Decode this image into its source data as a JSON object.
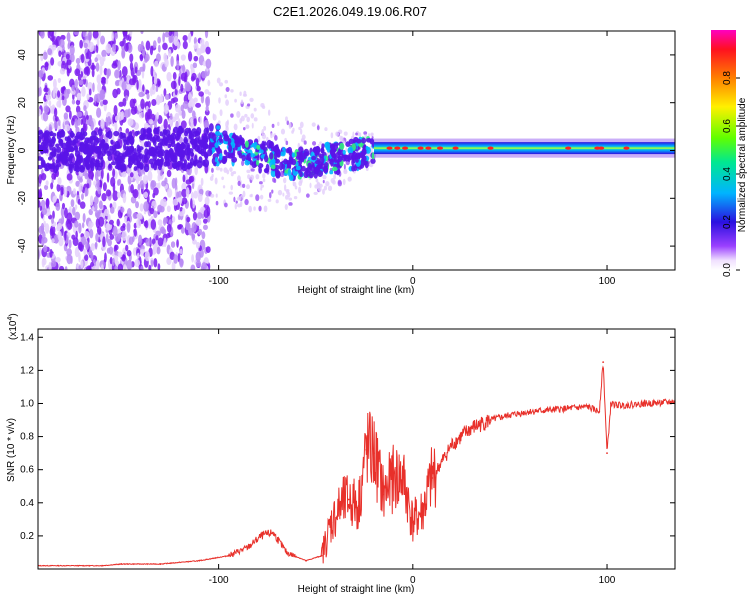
{
  "title": "C2E1.2026.049.19.06.R07",
  "chart_data": [
    {
      "type": "heatmap",
      "title": "C2E1.2026.049.19.06.R07",
      "xlabel": "Height of straight line (km)",
      "ylabel": "Frequency (Hz)",
      "xlim": [
        -193,
        135
      ],
      "ylim": [
        -50,
        50
      ],
      "xticks": [
        -100,
        0,
        100
      ],
      "xtick_labels": [
        "-100",
        "0",
        "100"
      ],
      "yticks": [
        -40,
        -20,
        0,
        20,
        40
      ],
      "ytick_labels": [
        "-40",
        "-20",
        "0",
        "20",
        "40"
      ],
      "signal_band_center_hz": [
        {
          "x": -190,
          "f": 0
        },
        {
          "x": -150,
          "f": 0
        },
        {
          "x": -120,
          "f": 1
        },
        {
          "x": -100,
          "f": 2
        },
        {
          "x": -85,
          "f": -1
        },
        {
          "x": -70,
          "f": -4
        },
        {
          "x": -60,
          "f": -6
        },
        {
          "x": -50,
          "f": -4
        },
        {
          "x": -40,
          "f": -3
        },
        {
          "x": -30,
          "f": -2
        },
        {
          "x": -20,
          "f": 1
        },
        {
          "x": 0,
          "f": 1
        },
        {
          "x": 50,
          "f": 1
        },
        {
          "x": 100,
          "f": 1
        },
        {
          "x": 135,
          "f": 1
        }
      ],
      "colorbar": {
        "label": "Normalized spectral amplitude",
        "range": [
          0,
          1
        ],
        "ticks": [
          0.0,
          0.2,
          0.4,
          0.6,
          0.8
        ],
        "tick_labels": [
          "0.0",
          "0.2",
          "0.4",
          "0.6",
          "0.8"
        ]
      }
    },
    {
      "type": "line",
      "xlabel": "Height of straight line (km)",
      "ylabel": "SNR (10 * v/v)",
      "y_scale_label": "(x10",
      "y_scale_exponent": "4",
      "xlim": [
        -193,
        135
      ],
      "ylim": [
        0,
        1.45
      ],
      "xticks": [
        -100,
        0,
        100
      ],
      "xtick_labels": [
        "-100",
        "0",
        "100"
      ],
      "yticks": [
        0.2,
        0.4,
        0.6,
        0.8,
        1.0,
        1.2,
        1.4
      ],
      "ytick_labels": [
        "0.2",
        "0.4",
        "0.6",
        "0.8",
        "1.0",
        "1.2",
        "1.4"
      ],
      "series": [
        {
          "name": "SNR",
          "color": "#e8302a",
          "x": [
            -193,
            -160,
            -150,
            -130,
            -110,
            -95,
            -85,
            -78,
            -72,
            -65,
            -55,
            -47,
            -42,
            -37,
            -33,
            -28,
            -24,
            -20,
            -15,
            -10,
            -5,
            0,
            5,
            10,
            15,
            20,
            25,
            30,
            40,
            50,
            60,
            70,
            80,
            90,
            96,
            98,
            100,
            102,
            105,
            110,
            120,
            135
          ],
          "y": [
            0.02,
            0.02,
            0.03,
            0.03,
            0.05,
            0.08,
            0.13,
            0.2,
            0.22,
            0.1,
            0.05,
            0.08,
            0.28,
            0.38,
            0.42,
            0.38,
            0.72,
            0.7,
            0.45,
            0.55,
            0.55,
            0.28,
            0.35,
            0.55,
            0.65,
            0.75,
            0.8,
            0.85,
            0.9,
            0.93,
            0.95,
            0.96,
            0.97,
            0.98,
            0.95,
            1.25,
            0.7,
            1.0,
            0.99,
            0.99,
            1.0,
            1.01
          ]
        }
      ]
    }
  ]
}
